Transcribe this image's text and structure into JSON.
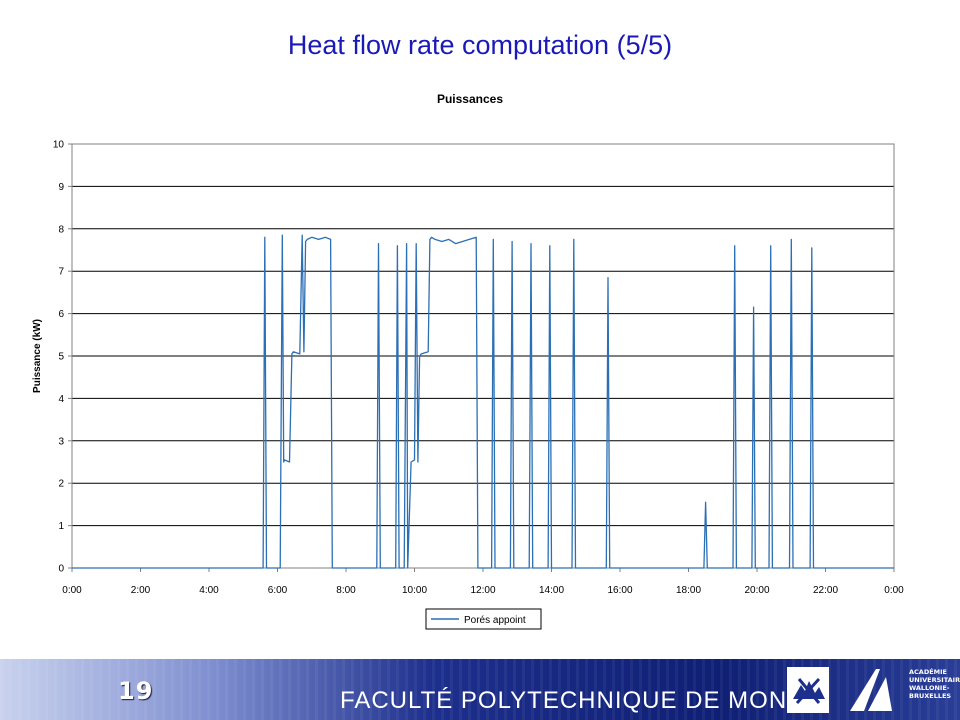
{
  "slide": {
    "title": "Heat flow rate computation (5/5)",
    "page_number": "19"
  },
  "footer": {
    "faculty": "FACULTÉ POLYTECHNIQUE DE MONS",
    "academy_lines": [
      "ACADÉMIE",
      "UNIVERSITAIRE",
      "WALLONIE-",
      "BRUXELLES"
    ]
  },
  "chart_data": {
    "type": "line",
    "title": "Puissances",
    "xlabel": "",
    "ylabel": "Puissance (kW)",
    "xlim": [
      0,
      24
    ],
    "ylim": [
      0,
      10
    ],
    "x_ticks": [
      "0:00",
      "2:00",
      "4:00",
      "6:00",
      "8:00",
      "10:00",
      "12:00",
      "14:00",
      "16:00",
      "18:00",
      "20:00",
      "22:00",
      "0:00"
    ],
    "y_ticks": [
      "0",
      "1",
      "2",
      "3",
      "4",
      "5",
      "6",
      "7",
      "8",
      "9",
      "10"
    ],
    "grid": "horizontal",
    "legend_position": "bottom",
    "series_color": "#2b6fb5",
    "series": [
      {
        "name": "Porés appoint",
        "x": [
          0,
          5.58,
          5.63,
          5.68,
          6.08,
          6.14,
          6.18,
          6.2,
          6.35,
          6.42,
          6.46,
          6.65,
          6.72,
          6.77,
          6.82,
          6.87,
          7.0,
          7.2,
          7.4,
          7.55,
          7.6,
          8.9,
          8.95,
          9.0,
          9.45,
          9.5,
          9.55,
          9.7,
          9.77,
          9.8,
          9.9,
          10.0,
          10.05,
          10.1,
          10.15,
          10.2,
          10.4,
          10.45,
          10.5,
          10.6,
          10.8,
          11.0,
          11.2,
          11.4,
          11.6,
          11.8,
          11.85,
          12.25,
          12.3,
          12.35,
          12.8,
          12.85,
          12.9,
          13.35,
          13.4,
          13.45,
          13.9,
          13.95,
          14.0,
          14.6,
          14.65,
          14.7,
          15.6,
          15.65,
          15.7,
          18.45,
          18.5,
          18.55,
          19.3,
          19.35,
          19.4,
          19.85,
          19.9,
          19.95,
          20.35,
          20.4,
          20.45,
          20.95,
          21.0,
          21.05,
          21.55,
          21.6,
          21.65,
          24
        ],
        "y": [
          0,
          0,
          7.8,
          0,
          0,
          7.85,
          2.5,
          2.55,
          2.5,
          5.05,
          5.1,
          5.05,
          7.85,
          5.1,
          7.7,
          7.75,
          7.8,
          7.75,
          7.8,
          7.75,
          0,
          0,
          7.65,
          0,
          0,
          7.6,
          0,
          0,
          7.65,
          0,
          2.5,
          2.55,
          7.65,
          2.5,
          5.0,
          5.05,
          5.1,
          7.75,
          7.8,
          7.75,
          7.7,
          7.75,
          7.65,
          7.7,
          7.75,
          7.8,
          0,
          0,
          7.75,
          0,
          0,
          7.7,
          0,
          0,
          7.65,
          0,
          0,
          7.6,
          0,
          0,
          7.75,
          0,
          0,
          6.85,
          0,
          0,
          1.55,
          0,
          0,
          7.6,
          0,
          0,
          6.15,
          0,
          0,
          7.6,
          0,
          0,
          7.75,
          0,
          0,
          7.55,
          0,
          0
        ]
      }
    ]
  }
}
